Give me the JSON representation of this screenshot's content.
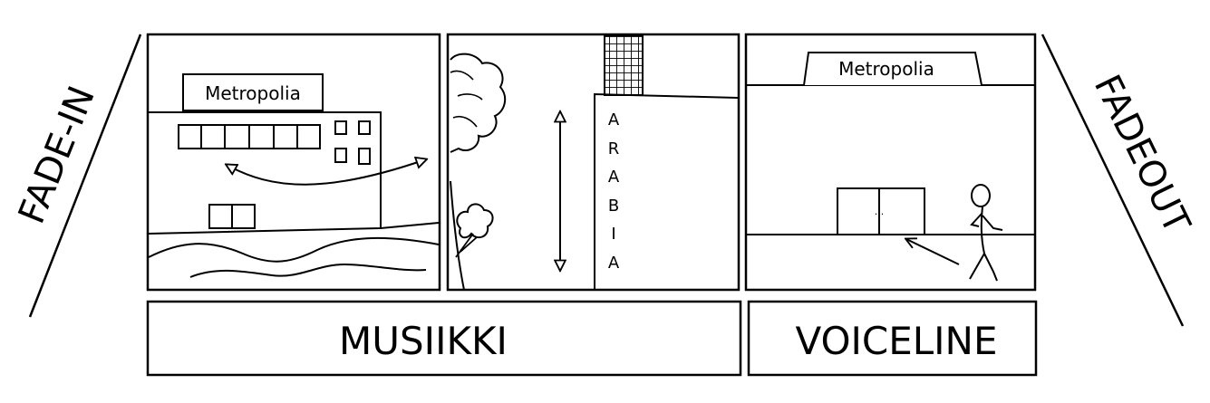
{
  "side_labels": {
    "left": "FADE-IN",
    "right": "FADEOUT"
  },
  "panels": [
    {
      "sign": "Metropolia"
    },
    {
      "vertical_text": [
        "A",
        "R",
        "A",
        "B",
        "I",
        "A"
      ]
    },
    {
      "sign": "Metropolia",
      "door_mark": ". ."
    }
  ],
  "bottom_bars": {
    "music": "MUSIIKKI",
    "voice": "VOICELINE"
  }
}
